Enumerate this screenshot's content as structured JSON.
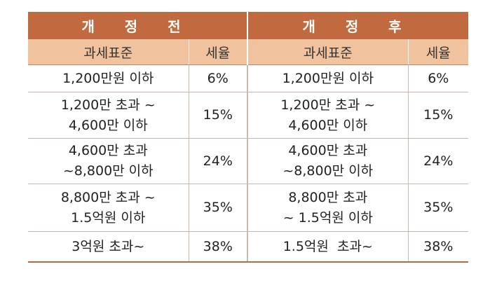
{
  "header": {
    "before": "개 정 전",
    "after": "개 정 후"
  },
  "columns": {
    "base": "과세표준",
    "rate": "세율"
  },
  "rows": [
    {
      "before_base": [
        "1,200만원 이하"
      ],
      "before_rate": "6%",
      "after_base": [
        "1,200만원 이하"
      ],
      "after_rate": "6%"
    },
    {
      "before_base": [
        "1,200만 초과 ~",
        "4,600만 이하"
      ],
      "before_rate": "15%",
      "after_base": [
        "1,200만 초과 ~",
        "4,600만 이하"
      ],
      "after_rate": "15%"
    },
    {
      "before_base": [
        "4,600만 초과",
        "~8,800만 이하"
      ],
      "before_rate": "24%",
      "after_base": [
        "4,600만 초과",
        "~8,800만 이하"
      ],
      "after_rate": "24%"
    },
    {
      "before_base": [
        "8,800만 초과 ~",
        "1.5억원 이하"
      ],
      "before_rate": "35%",
      "after_base": [
        "8,800만 초과",
        "~ 1.5억원 이하"
      ],
      "after_rate": "35%"
    },
    {
      "before_base": [
        "3억원 초과~"
      ],
      "before_rate": "38%",
      "after_base": [
        "1.5억원  초과~"
      ],
      "after_rate": "38%"
    }
  ],
  "colors": {
    "header_bg": "#c1693f",
    "subheader_bg": "#f0c29d",
    "rule": "#c9b8ab",
    "bottom_rule": "#b36a44"
  }
}
